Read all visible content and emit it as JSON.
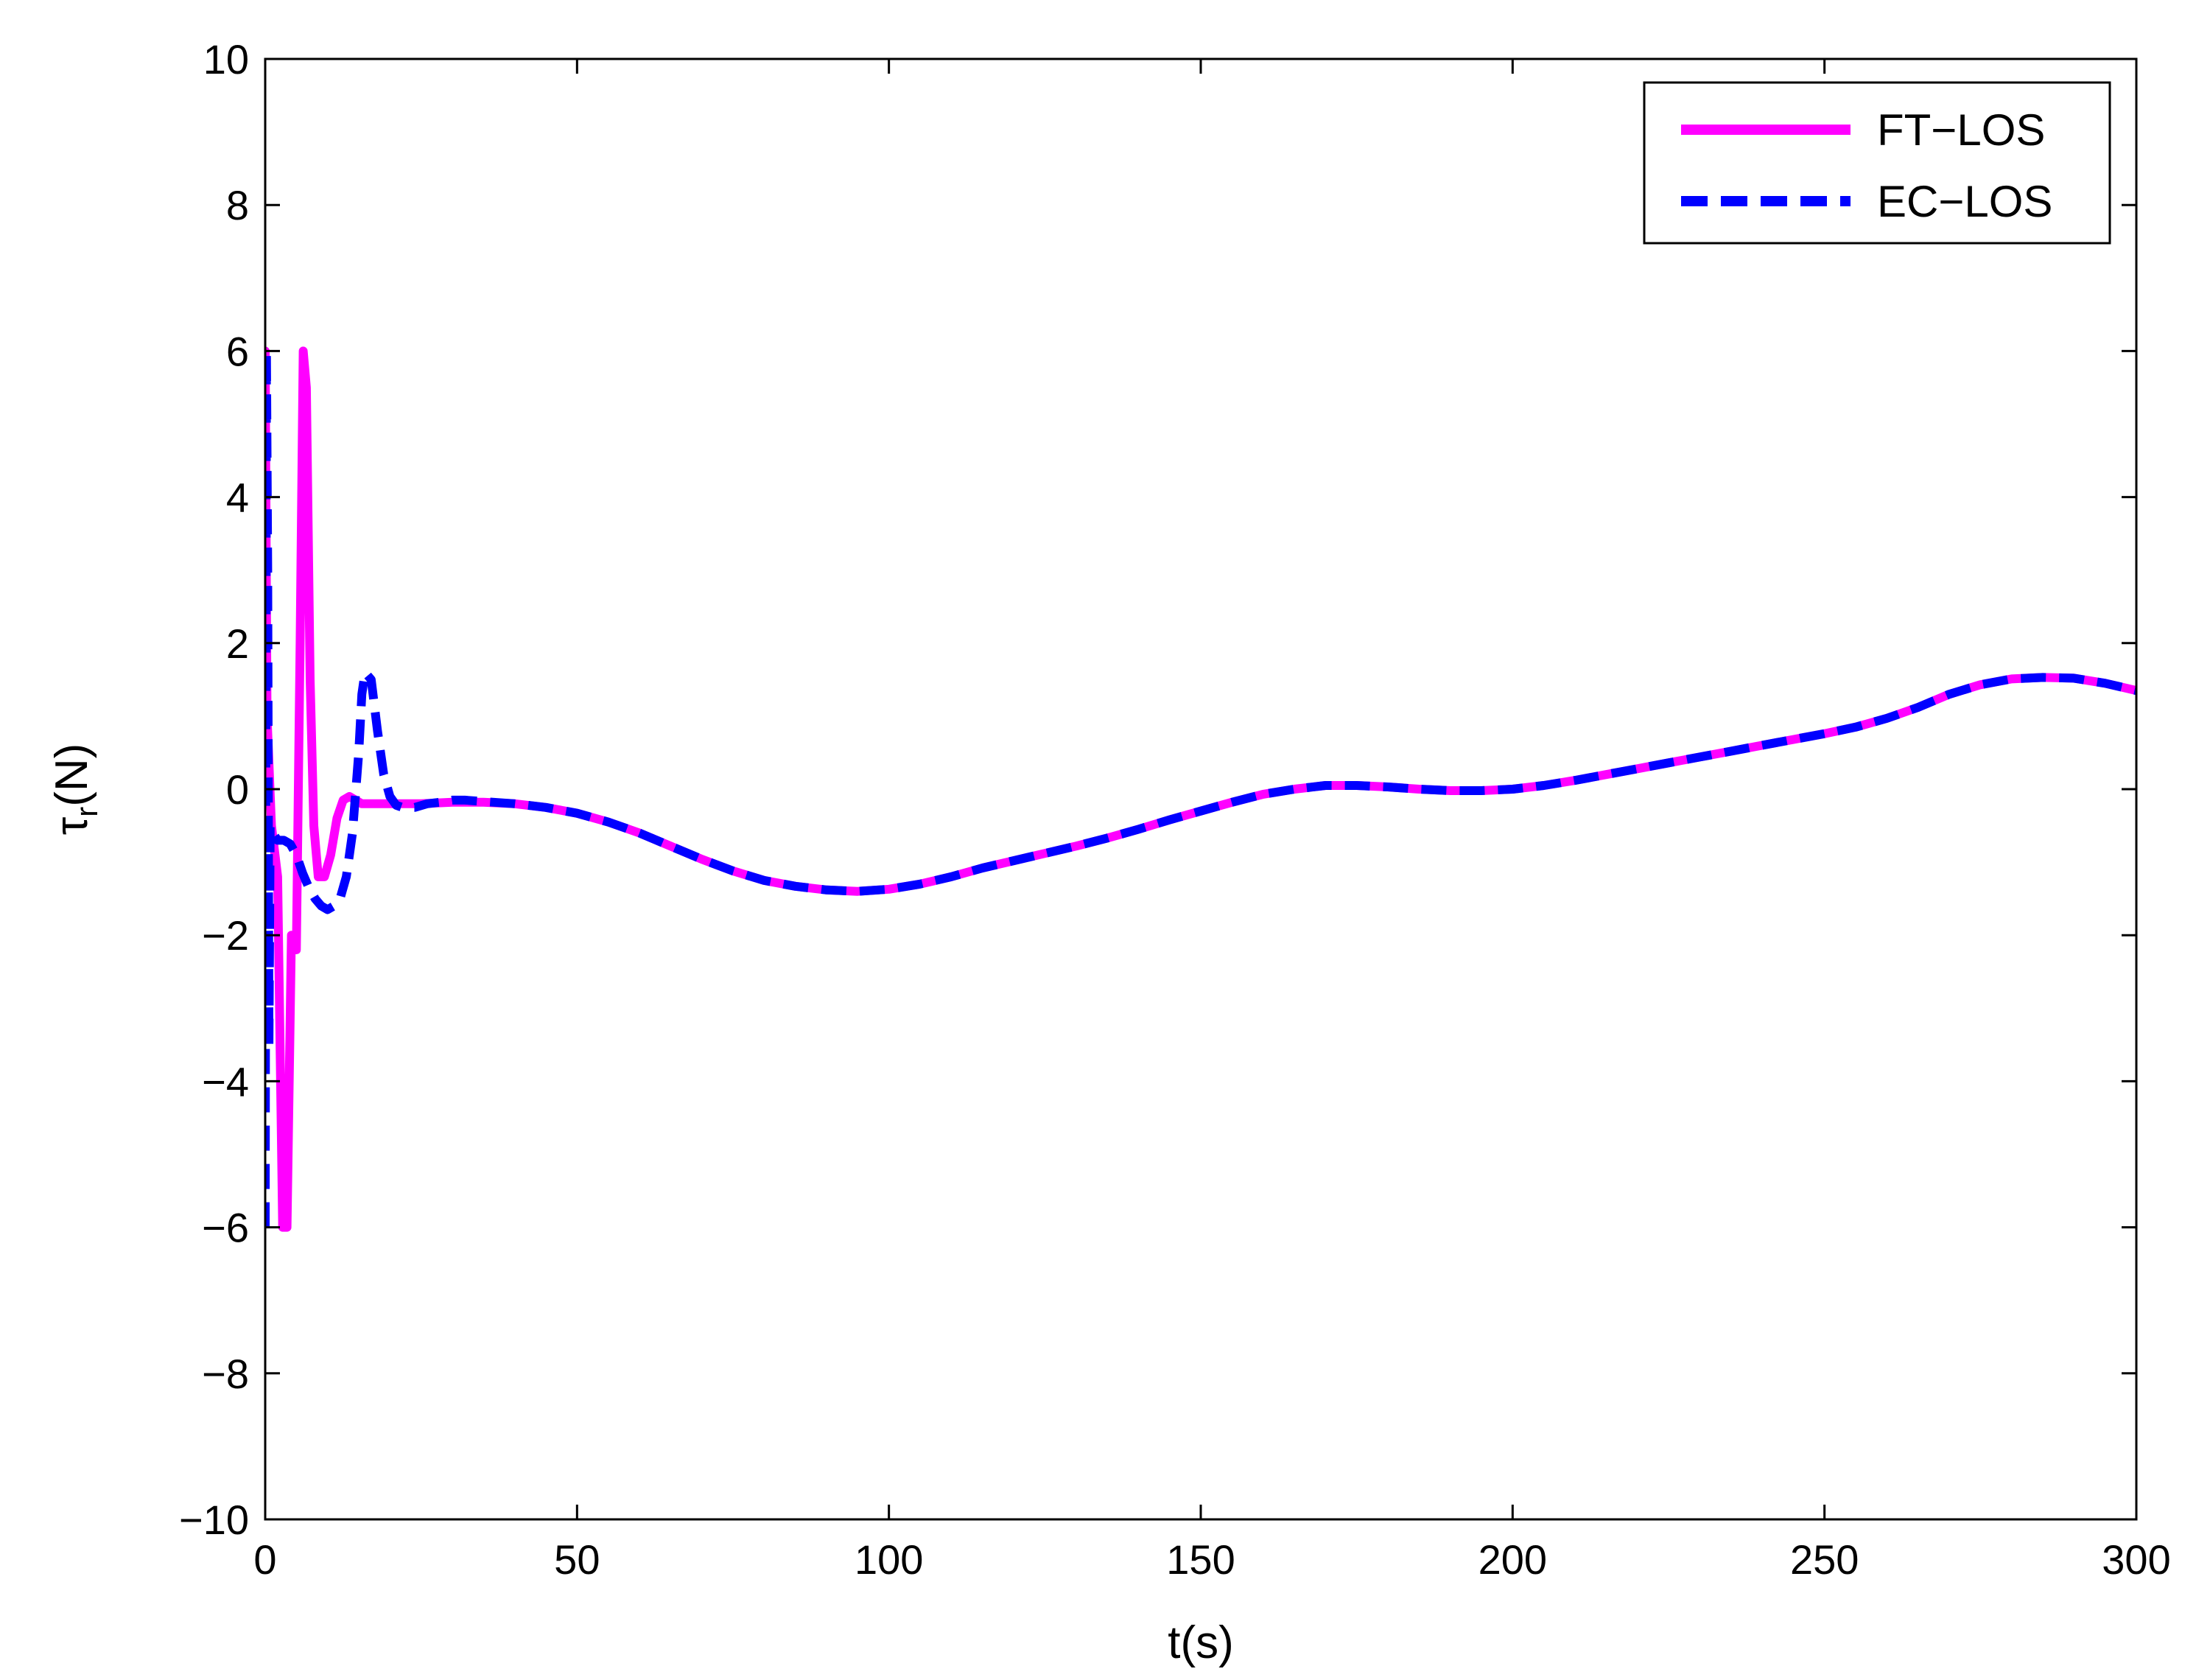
{
  "chart_data": {
    "type": "line",
    "xlabel": "t(s)",
    "ylabel_main": "τ",
    "ylabel_sub": "r",
    "ylabel_unit": "(N)",
    "xlim": [
      0,
      300
    ],
    "ylim": [
      -10,
      10
    ],
    "xticks": [
      0,
      50,
      100,
      150,
      200,
      250,
      300
    ],
    "yticks": [
      -10,
      -8,
      -6,
      -4,
      -2,
      0,
      2,
      4,
      6,
      8,
      10
    ],
    "xtick_labels": [
      "0",
      "50",
      "100",
      "150",
      "200",
      "250",
      "300"
    ],
    "ytick_labels": [
      "−10",
      "−8",
      "−6",
      "−4",
      "−2",
      "0",
      "2",
      "4",
      "6",
      "8",
      "10"
    ],
    "grid": false,
    "legend_position": "top-right",
    "series": [
      {
        "name": "FT−LOS",
        "color": "#ff00ff",
        "style": "solid",
        "x": [
          0,
          0.3,
          1,
          2,
          2.8,
          3.5,
          4.2,
          5,
          5.6,
          6.1,
          6.6,
          7.2,
          7.8,
          8.5,
          9.5,
          10.5,
          11.5,
          12.5,
          13.5,
          14.5,
          15.5,
          17,
          20,
          25,
          30,
          35,
          40,
          45,
          50,
          55,
          60,
          65,
          70,
          75,
          80,
          85,
          90,
          95,
          100,
          105,
          110,
          115,
          120,
          125,
          130,
          135,
          140,
          145,
          150,
          155,
          160,
          165,
          170,
          175,
          180,
          185,
          190,
          195,
          200,
          205,
          210,
          215,
          220,
          225,
          230,
          235,
          240,
          245,
          250,
          255,
          260,
          265,
          270,
          275,
          280,
          285,
          290,
          295,
          300
        ],
        "y": [
          6.0,
          1.0,
          -0.5,
          -1.2,
          -6.0,
          -6.0,
          -2.0,
          -2.2,
          2.0,
          6.0,
          5.5,
          1.5,
          -0.5,
          -1.2,
          -1.2,
          -0.9,
          -0.4,
          -0.15,
          -0.1,
          -0.15,
          -0.2,
          -0.2,
          -0.2,
          -0.2,
          -0.18,
          -0.18,
          -0.2,
          -0.25,
          -0.33,
          -0.45,
          -0.6,
          -0.78,
          -0.96,
          -1.12,
          -1.25,
          -1.33,
          -1.38,
          -1.4,
          -1.37,
          -1.3,
          -1.2,
          -1.08,
          -0.98,
          -0.88,
          -0.78,
          -0.67,
          -0.55,
          -0.42,
          -0.3,
          -0.18,
          -0.07,
          0.0,
          0.05,
          0.05,
          0.03,
          0.0,
          -0.02,
          -0.02,
          0.0,
          0.05,
          0.12,
          0.2,
          0.28,
          0.36,
          0.44,
          0.52,
          0.6,
          0.68,
          0.76,
          0.85,
          0.97,
          1.12,
          1.3,
          1.43,
          1.51,
          1.53,
          1.52,
          1.45,
          1.35
        ]
      },
      {
        "name": "EC−LOS",
        "color": "#0000ff",
        "style": "dashed",
        "x": [
          0,
          0.2,
          0.4,
          0.6,
          0.8,
          1.2,
          2,
          3,
          4,
          5,
          6,
          7,
          8,
          9,
          10,
          11,
          12,
          13,
          14,
          15,
          15.5,
          16,
          17,
          18,
          19,
          20,
          21,
          22,
          24,
          26,
          28,
          30,
          32,
          35,
          40,
          45,
          50,
          55,
          60,
          65,
          70,
          75,
          80,
          85,
          90,
          95,
          100,
          105,
          110,
          115,
          120,
          125,
          130,
          135,
          140,
          145,
          150,
          155,
          160,
          165,
          170,
          175,
          180,
          185,
          190,
          195,
          200,
          205,
          210,
          215,
          220,
          225,
          230,
          235,
          240,
          245,
          250,
          255,
          260,
          265,
          270,
          275,
          280,
          285,
          290,
          295,
          300
        ],
        "y": [
          -6.0,
          6.0,
          3.0,
          -3.5,
          -0.5,
          -0.6,
          -0.7,
          -0.7,
          -0.75,
          -0.9,
          -1.15,
          -1.35,
          -1.5,
          -1.6,
          -1.65,
          -1.6,
          -1.5,
          -1.2,
          -0.6,
          0.5,
          1.3,
          1.6,
          1.5,
          0.8,
          0.2,
          -0.1,
          -0.22,
          -0.25,
          -0.25,
          -0.2,
          -0.18,
          -0.15,
          -0.15,
          -0.17,
          -0.2,
          -0.25,
          -0.33,
          -0.45,
          -0.6,
          -0.78,
          -0.96,
          -1.12,
          -1.25,
          -1.33,
          -1.38,
          -1.4,
          -1.37,
          -1.3,
          -1.2,
          -1.08,
          -0.98,
          -0.88,
          -0.78,
          -0.67,
          -0.55,
          -0.42,
          -0.3,
          -0.18,
          -0.07,
          0.0,
          0.05,
          0.05,
          0.03,
          0.0,
          -0.02,
          -0.02,
          0.0,
          0.05,
          0.12,
          0.2,
          0.28,
          0.36,
          0.44,
          0.52,
          0.6,
          0.68,
          0.76,
          0.85,
          0.97,
          1.12,
          1.3,
          1.43,
          1.51,
          1.53,
          1.52,
          1.45,
          1.35
        ]
      }
    ]
  }
}
